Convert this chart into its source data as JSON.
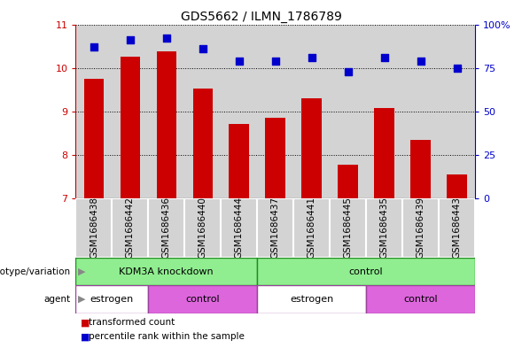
{
  "title": "GDS5662 / ILMN_1786789",
  "samples": [
    "GSM1686438",
    "GSM1686442",
    "GSM1686436",
    "GSM1686440",
    "GSM1686444",
    "GSM1686437",
    "GSM1686441",
    "GSM1686445",
    "GSM1686435",
    "GSM1686439",
    "GSM1686443"
  ],
  "bar_values": [
    9.74,
    10.26,
    10.37,
    9.52,
    8.72,
    8.85,
    9.31,
    7.77,
    9.08,
    8.35,
    7.56
  ],
  "dot_values": [
    87,
    91,
    92,
    86,
    79,
    79,
    81,
    73,
    81,
    79,
    75
  ],
  "ylim_left": [
    7,
    11
  ],
  "ylim_right": [
    0,
    100
  ],
  "yticks_left": [
    7,
    8,
    9,
    10,
    11
  ],
  "yticks_right": [
    0,
    25,
    50,
    75,
    100
  ],
  "bar_color": "#cc0000",
  "dot_color": "#0000cc",
  "sample_bg": "#d3d3d3",
  "genotype_groups": [
    {
      "label": "KDM3A knockdown",
      "start": 0,
      "end": 4,
      "color": "#90ee90"
    },
    {
      "label": "control",
      "start": 5,
      "end": 10,
      "color": "#90ee90"
    }
  ],
  "agent_groups": [
    {
      "label": "estrogen",
      "start": 0,
      "end": 1,
      "color": "#ffffff"
    },
    {
      "label": "control",
      "start": 2,
      "end": 4,
      "color": "#dd66dd"
    },
    {
      "label": "estrogen",
      "start": 5,
      "end": 7,
      "color": "#ffffff"
    },
    {
      "label": "control",
      "start": 8,
      "end": 10,
      "color": "#dd66dd"
    }
  ],
  "left_labels": [
    "genotype/variation",
    "agent"
  ],
  "arrow_color": "#888888"
}
